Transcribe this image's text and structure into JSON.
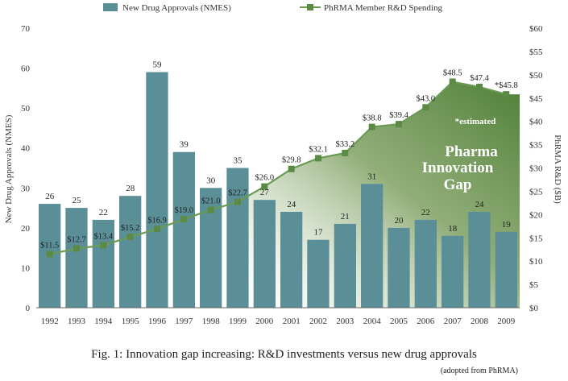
{
  "chart_data": {
    "type": "bar",
    "categories": [
      "1992",
      "1993",
      "1994",
      "1995",
      "1996",
      "1997",
      "1998",
      "1999",
      "2000",
      "2001",
      "2002",
      "2003",
      "2004",
      "2005",
      "2006",
      "2007",
      "2008",
      "2009"
    ],
    "series": [
      {
        "name": "New Drug Approvals (NMES)",
        "type": "bar",
        "axis": "left",
        "values": [
          26,
          25,
          22,
          28,
          59,
          39,
          30,
          35,
          27,
          24,
          17,
          21,
          31,
          20,
          22,
          18,
          24,
          19
        ],
        "labels": [
          "26",
          "25",
          "22",
          "28",
          "59",
          "39",
          "30",
          "35",
          "27",
          "24",
          "17",
          "21",
          "31",
          "20",
          "22",
          "18",
          "24",
          "19"
        ]
      },
      {
        "name": "PhRMA Member R&D Spending",
        "type": "line",
        "axis": "right",
        "values": [
          11.5,
          12.7,
          13.4,
          15.2,
          16.9,
          19.0,
          21.0,
          22.7,
          26.0,
          29.8,
          32.1,
          33.2,
          38.8,
          39.4,
          43.0,
          48.5,
          47.4,
          45.8
        ],
        "labels": [
          "$11.5",
          "$12.7",
          "$13.4",
          "$15.2",
          "$16.9",
          "$19.0",
          "$21.0",
          "$22.7",
          "$26.0",
          "$29.8",
          "$32.1",
          "$33.2",
          "$38.8",
          "$39.4",
          "$43.0",
          "$48.5",
          "$47.4",
          "*$45.8"
        ]
      }
    ],
    "y_left": {
      "label": "New Drug Approvals (NMES)",
      "min": 0,
      "max": 70,
      "ticks": [
        "0",
        "10",
        "20",
        "30",
        "40",
        "50",
        "60",
        "70"
      ]
    },
    "y_right": {
      "label": "PhRMA R&D ($B)",
      "min": 0,
      "max": 60,
      "ticks": [
        "$0",
        "$5",
        "$10",
        "$15",
        "$20",
        "$25",
        "$30",
        "$35",
        "$40",
        "$45",
        "$50",
        "$55",
        "$60"
      ]
    },
    "annotations": {
      "estimated": "*estimated",
      "gap_lines": [
        "Pharma",
        "Innovation",
        "Gap"
      ]
    },
    "legend_placement": "top",
    "grid": false,
    "colors": {
      "bar": "#5b8f98",
      "line": "#6a9a54",
      "marker": "#5b8a45",
      "gap_dark": "#4a7a33"
    }
  },
  "caption": {
    "main": "Fig. 1: Innovation gap increasing: R&D investments versus new drug approvals",
    "sub": "(adopted from PhRMA)"
  }
}
